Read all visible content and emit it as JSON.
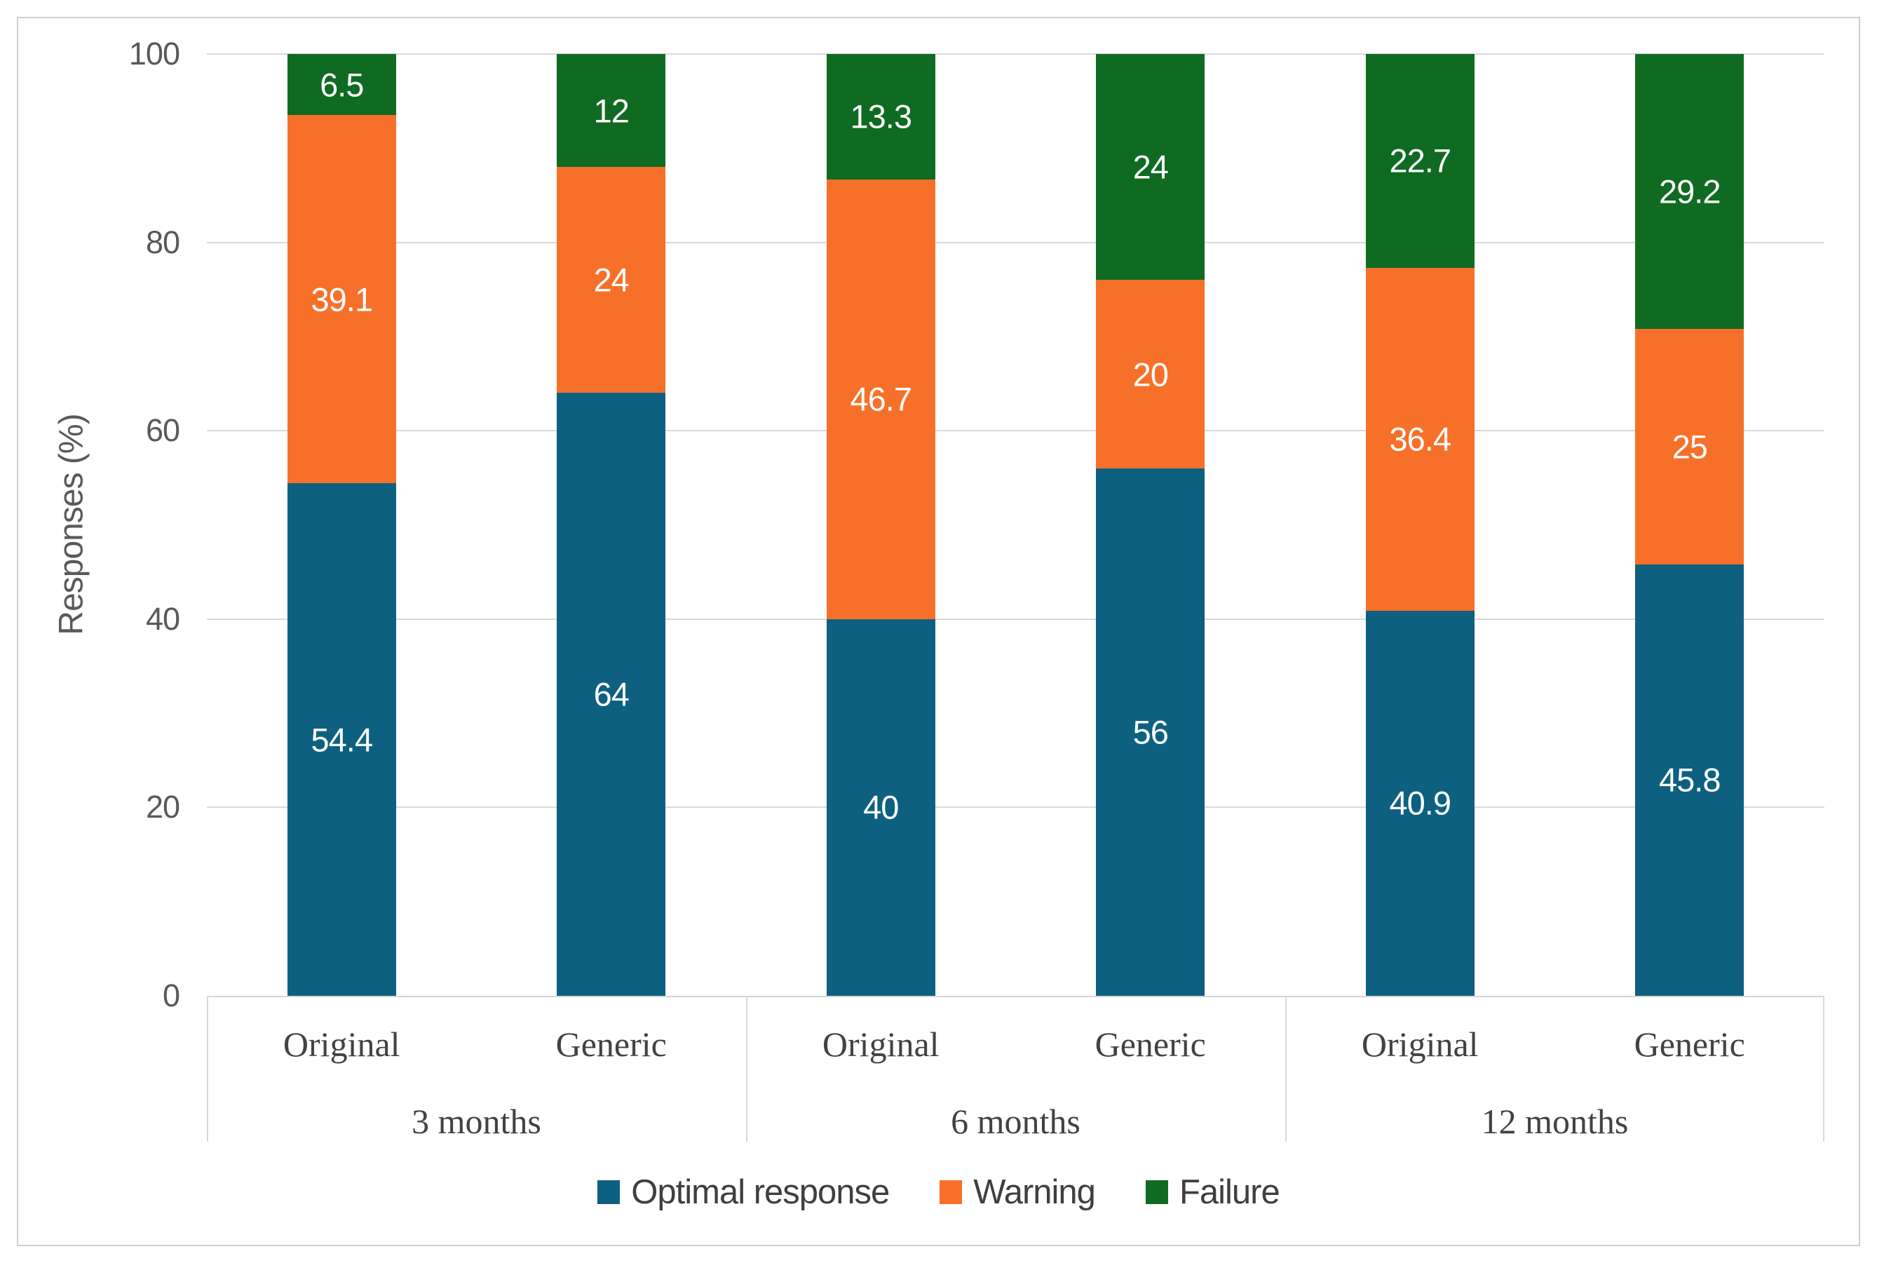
{
  "chart_data": {
    "type": "bar",
    "stacked": true,
    "title": "",
    "ylabel": "Responses (%)",
    "ylim": [
      0,
      100
    ],
    "yticks": [
      "0",
      "20",
      "40",
      "60",
      "80",
      "100"
    ],
    "grid": true,
    "legend_position": "bottom",
    "group_labels": [
      "3 months",
      "6 months",
      "12 months"
    ],
    "categories": [
      "Original",
      "Generic",
      "Original",
      "Generic",
      "Original",
      "Generic"
    ],
    "series": [
      {
        "name": "Optimal response",
        "color": "#0e6080",
        "values": [
          54.4,
          64,
          40,
          56,
          40.9,
          45.8
        ]
      },
      {
        "name": "Warning",
        "color": "#f7702a",
        "values": [
          39.1,
          24,
          46.7,
          20,
          36.4,
          25
        ]
      },
      {
        "name": "Failure",
        "color": "#0f6b21",
        "values": [
          6.5,
          12,
          13.3,
          24,
          22.7,
          29.2
        ]
      }
    ],
    "colors": {
      "gridline": "#d9d9d9",
      "axis_text": "#595959",
      "category_text": "#424242",
      "data_label_text": "#ffffff"
    }
  }
}
